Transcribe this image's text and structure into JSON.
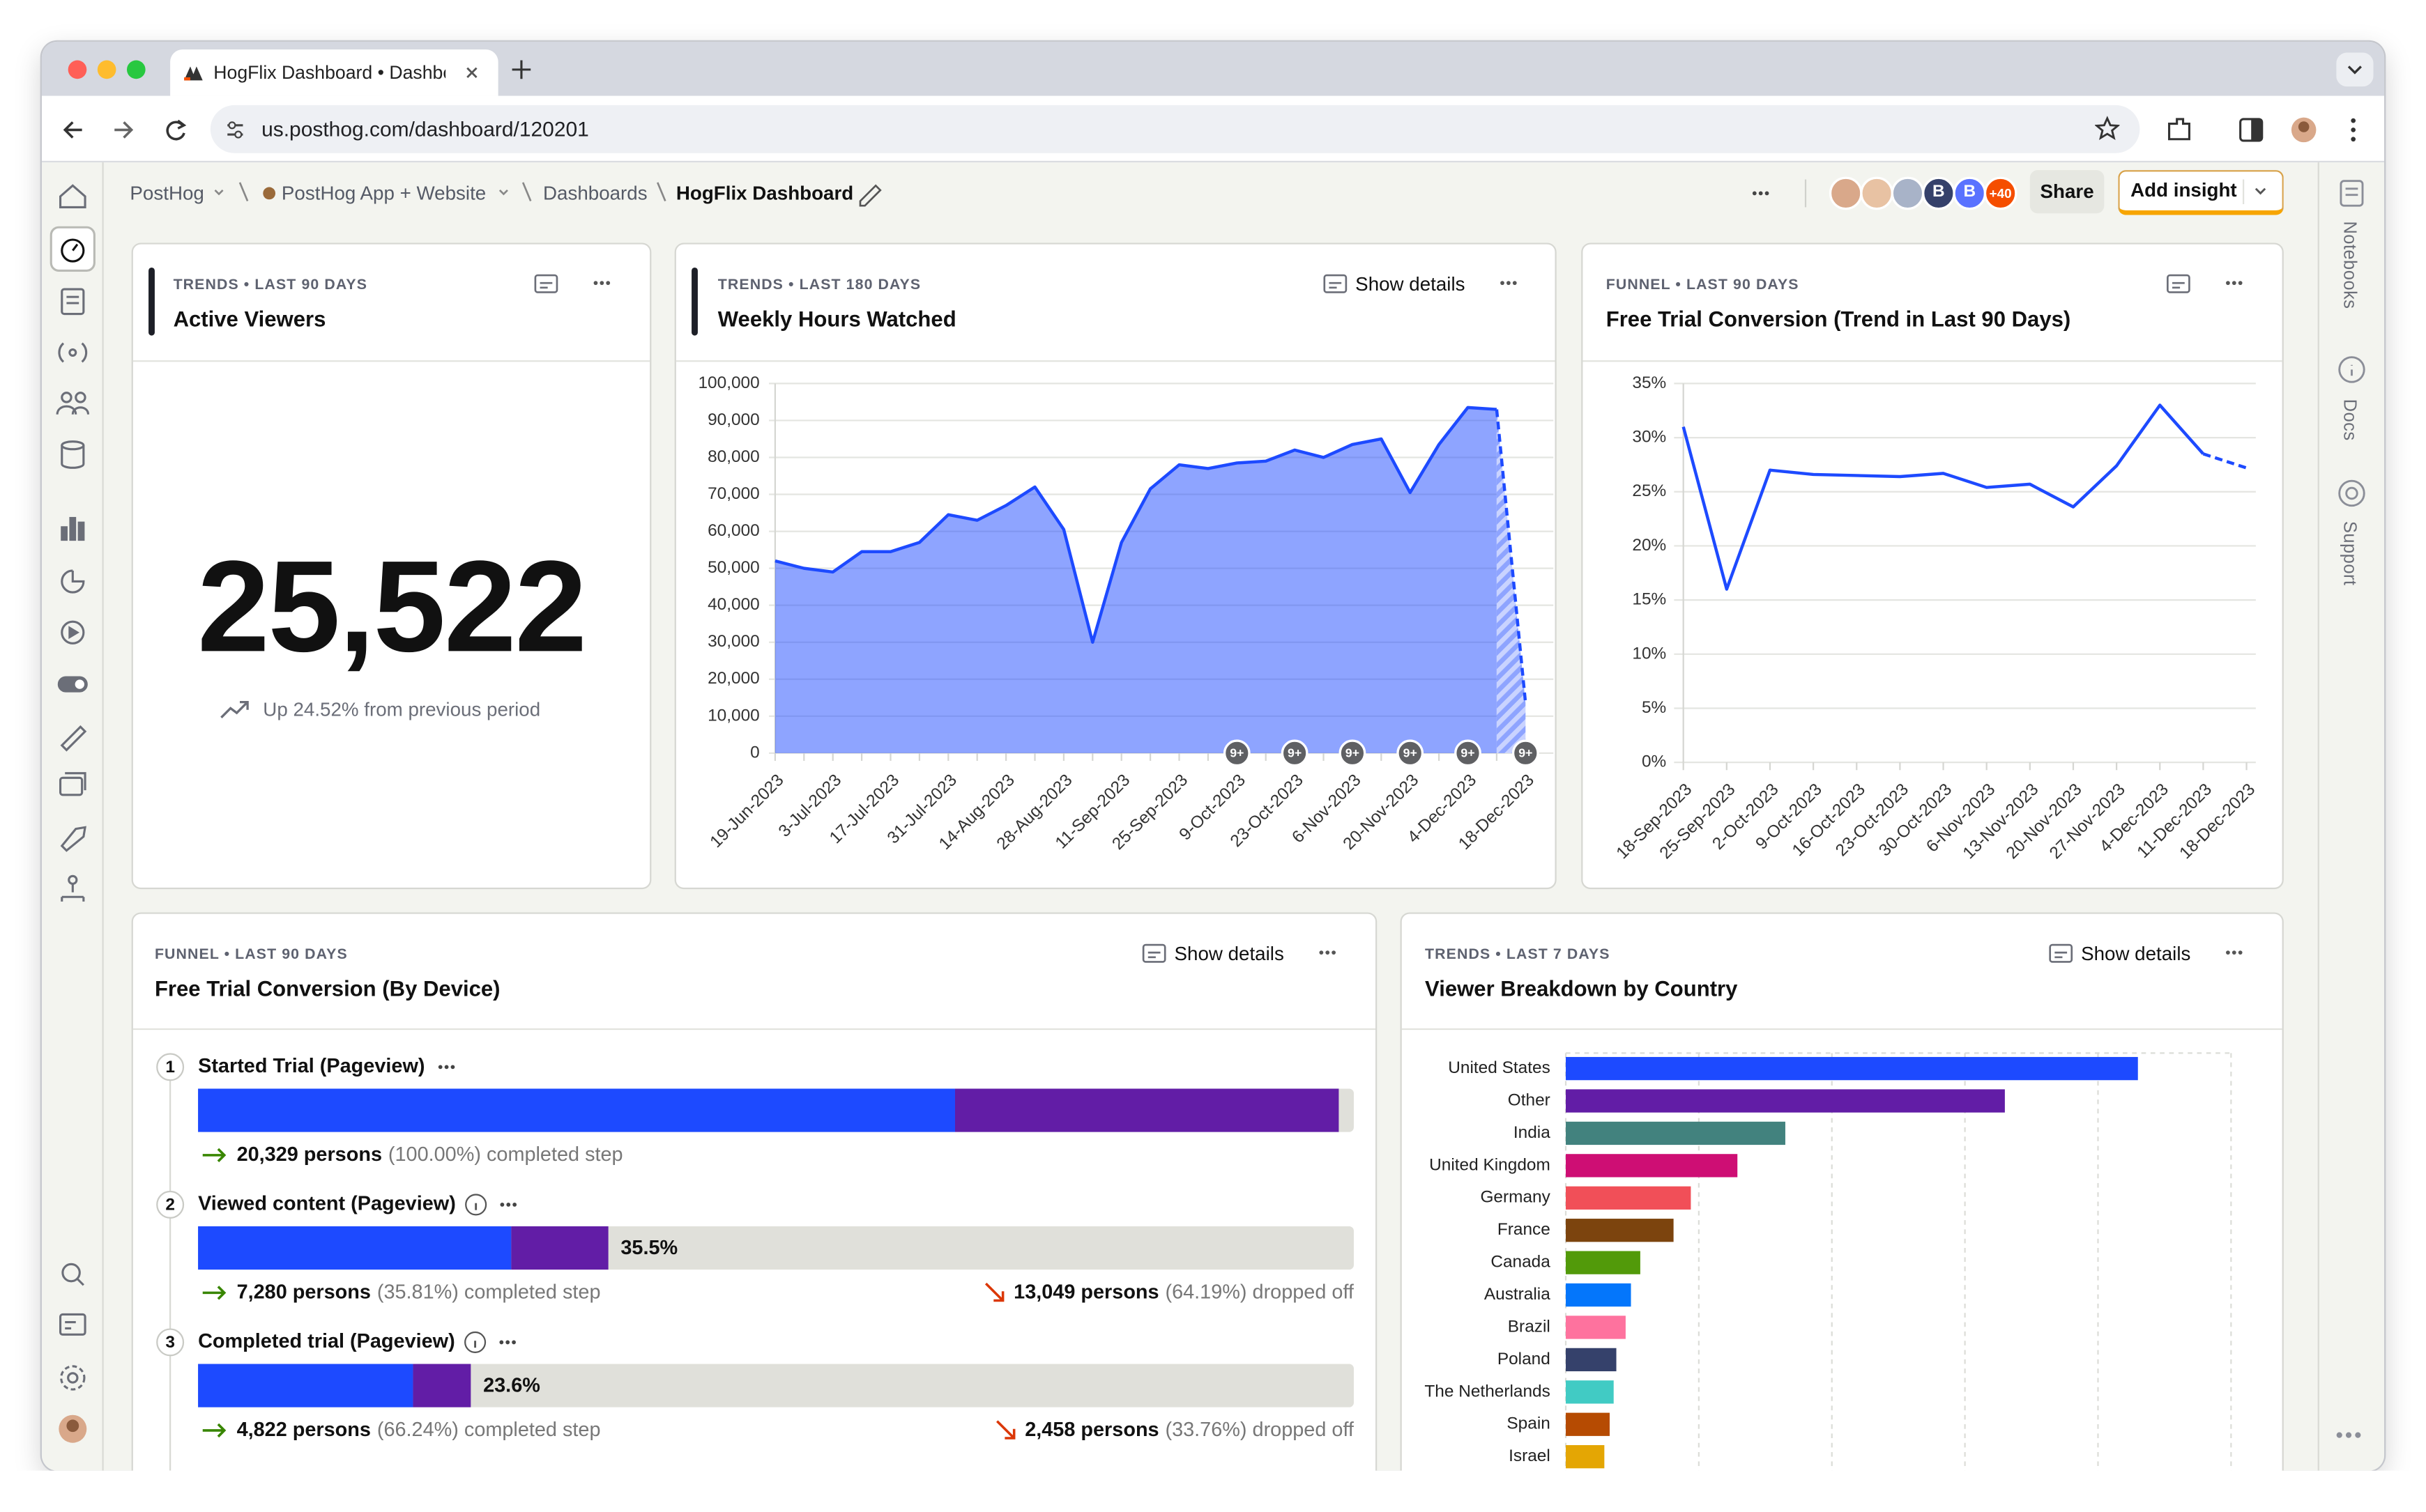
{
  "browser": {
    "tab_title": "HogFlix Dashboard • Dashbo",
    "url": "us.posthog.com/dashboard/120201"
  },
  "breadcrumbs": [
    "PostHog",
    "PostHog App + Website",
    "Dashboards",
    "HogFlix Dashboard"
  ],
  "header": {
    "avatars": [
      "B",
      "B"
    ],
    "more_avatars": "+40",
    "share": "Share",
    "add_insight": "Add insight"
  },
  "right_sidebar": [
    "Notebooks",
    "Docs",
    "Support"
  ],
  "tiles": [
    {
      "meta": "TRENDS • LAST 90 DAYS",
      "title": "Active Viewers",
      "number": "25,522",
      "comparison": "Up 24.52% from previous period"
    },
    {
      "meta": "TRENDS • LAST 180 DAYS",
      "title": "Weekly Hours Watched",
      "show_details": "Show details",
      "chart_data": {
        "type": "area",
        "color": "#1d4aff",
        "dashed_last_segment": true,
        "categories": [
          "19-Jun-2023",
          null,
          "3-Jul-2023",
          null,
          "17-Jul-2023",
          null,
          "31-Jul-2023",
          null,
          "14-Aug-2023",
          null,
          "28-Aug-2023",
          null,
          "11-Sep-2023",
          null,
          "25-Sep-2023",
          null,
          "9-Oct-2023",
          null,
          "23-Oct-2023",
          null,
          "6-Nov-2023",
          null,
          "20-Nov-2023",
          null,
          "4-Dec-2023",
          null,
          "18-Dec-2023"
        ],
        "values": [
          52000,
          50000,
          49000,
          54500,
          54500,
          57000,
          64500,
          63000,
          67000,
          72000,
          60500,
          30000,
          57000,
          71500,
          78000,
          77000,
          78500,
          79000,
          82000,
          80000,
          83500,
          85000,
          70500,
          83500,
          93500,
          93000,
          13500
        ],
        "ylim": [
          0,
          100000
        ],
        "yticks": [
          0,
          {
            "value": 10000,
            "label": "10,000"
          },
          {
            "value": 20000,
            "label": "20,000"
          },
          {
            "value": 30000,
            "label": "30,000"
          },
          {
            "value": 40000,
            "label": "40,000"
          },
          {
            "value": 50000,
            "label": "50,000"
          },
          {
            "value": 60000,
            "label": "60,000"
          },
          {
            "value": 70000,
            "label": "70,000"
          },
          {
            "value": 80000,
            "label": "80,000"
          },
          {
            "value": 90000,
            "label": "90,000"
          },
          {
            "value": 100000,
            "label": "100,000"
          }
        ],
        "grid": true,
        "annotations": [
          {
            "x": "9-Oct-2023",
            "text": "9+"
          },
          {
            "x": "23-Oct-2023",
            "text": "9+"
          },
          {
            "x": "6-Nov-2023",
            "text": "9+"
          },
          {
            "x": "20-Nov-2023",
            "text": "9+"
          },
          {
            "x": "4-Dec-2023",
            "text": "9+"
          },
          {
            "x": "18-Dec-2023",
            "text": "9+"
          }
        ]
      }
    },
    {
      "meta": "FUNNEL • LAST 90 DAYS",
      "title": "Free Trial Conversion (Trend in Last 90 Days)",
      "chart_data": {
        "type": "line",
        "color": "#1d4aff",
        "dashed_last_segment": true,
        "categories": [
          "18-Sep-2023",
          "25-Sep-2023",
          "2-Oct-2023",
          "9-Oct-2023",
          "16-Oct-2023",
          "23-Oct-2023",
          "30-Oct-2023",
          "6-Nov-2023",
          "13-Nov-2023",
          "20-Nov-2023",
          "27-Nov-2023",
          "4-Dec-2023",
          "11-Dec-2023",
          "18-Dec-2023"
        ],
        "values": [
          31,
          16,
          27,
          26.6,
          26.5,
          26.4,
          26.7,
          25.4,
          25.7,
          23.6,
          27.4,
          33,
          28.5,
          27.2
        ],
        "ylim": [
          0,
          35
        ],
        "yticks": [
          {
            "value": 0,
            "label": "0%"
          },
          {
            "value": 5,
            "label": "5%"
          },
          {
            "value": 10,
            "label": "10%"
          },
          {
            "value": 15,
            "label": "15%"
          },
          {
            "value": 20,
            "label": "20%"
          },
          {
            "value": 25,
            "label": "25%"
          },
          {
            "value": 30,
            "label": "30%"
          },
          {
            "value": 35,
            "label": "35%"
          }
        ],
        "grid": true
      }
    },
    {
      "meta": "FUNNEL • LAST 90 DAYS",
      "title": "Free Trial Conversion (By Device)",
      "show_details": "Show details",
      "funnel": {
        "steps": [
          {
            "order": 1,
            "name": "Started Trial (Pageview)",
            "segments": [
              {
                "color": "#1d4aff",
                "value": 65.5
              },
              {
                "color": "#621da6",
                "value": 33.2
              }
            ],
            "completed": "20,329 persons",
            "completed_rate": "(100.00%) completed step"
          },
          {
            "order": 2,
            "name": "Viewed content (Pageview)",
            "segments": [
              {
                "color": "#1d4aff",
                "value": 27.1
              },
              {
                "color": "#621da6",
                "value": 8.4
              }
            ],
            "bar_label": "35.5%",
            "completed": "7,280 persons",
            "completed_rate": "(35.81%) completed step",
            "dropped": "13,049 persons",
            "dropped_rate": "(64.19%) dropped off"
          },
          {
            "order": 3,
            "name": "Completed trial (Pageview)",
            "segments": [
              {
                "color": "#1d4aff",
                "value": 18.6
              },
              {
                "color": "#621da6",
                "value": 5.0
              }
            ],
            "bar_label": "23.6%",
            "completed": "4,822 persons",
            "completed_rate": "(66.24%) completed step",
            "dropped": "2,458 persons",
            "dropped_rate": "(33.76%) dropped off"
          }
        ]
      }
    },
    {
      "meta": "TRENDS • LAST 7 DAYS",
      "title": "Viewer Breakdown by Country",
      "show_details": "Show details",
      "chart_data": {
        "type": "hbar",
        "categories": [
          "United States",
          "Other",
          "India",
          "United Kingdom",
          "Germany",
          "France",
          "Canada",
          "Australia",
          "Brazil",
          "Poland",
          "The Netherlands",
          "Spain",
          "Israel"
        ],
        "values": [
          430,
          330,
          165,
          129,
          94,
          81,
          56,
          49,
          45,
          38,
          36,
          33,
          29
        ],
        "colors": [
          "#1d4aff",
          "#621da6",
          "#42827e",
          "#ce0e74",
          "#f14f58",
          "#7c440e",
          "#529a0a",
          "#0476fb",
          "#fe729e",
          "#35416b",
          "#41cbc4",
          "#b64b02",
          "#e4a604"
        ],
        "xlim": [
          0,
          500
        ],
        "grid": true
      }
    }
  ]
}
